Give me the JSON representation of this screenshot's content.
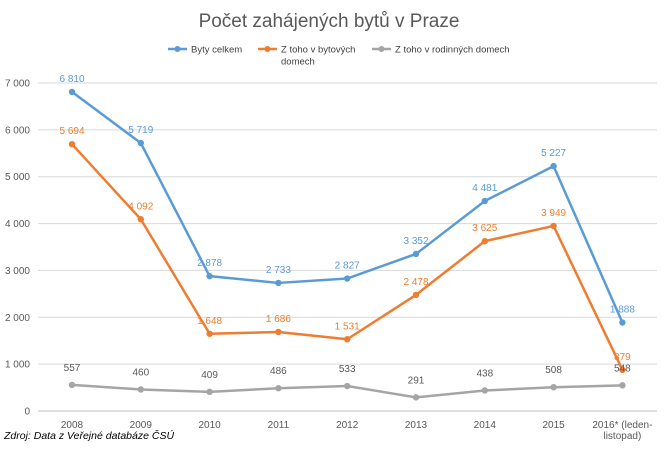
{
  "chart_data": {
    "type": "line",
    "title": "Počet zahájených bytů v Praze",
    "categories": [
      "2008",
      "2009",
      "2010",
      "2011",
      "2012",
      "2013",
      "2014",
      "2015",
      [
        "2016* (leden-",
        "listopad)"
      ]
    ],
    "ylim": [
      0,
      7000
    ],
    "yticks": [
      "0",
      "1 000",
      "2 000",
      "3 000",
      "4 000",
      "5 000",
      "6 000",
      "7 000"
    ],
    "ytick_values": [
      0,
      1000,
      2000,
      3000,
      4000,
      5000,
      6000,
      7000
    ],
    "grid": true,
    "legend_position": "top",
    "series": [
      {
        "name": "Byty celkem",
        "color": "#5b9bd5",
        "values": [
          6810,
          5719,
          2878,
          2733,
          2827,
          3352,
          4481,
          5227,
          1888
        ],
        "labels": [
          "6 810",
          "5 719",
          "2 878",
          "2 733",
          "2 827",
          "3 352",
          "4 481",
          "5 227",
          "1 888"
        ]
      },
      {
        "name": [
          "Z toho v bytových",
          "domech"
        ],
        "color": "#ed7d31",
        "values": [
          5694,
          4092,
          1648,
          1686,
          1531,
          2478,
          3625,
          3949,
          879
        ],
        "labels": [
          "5 694",
          "4 092",
          "1 648",
          "1 686",
          "1 531",
          "2 478",
          "3 625",
          "3 949",
          "879"
        ]
      },
      {
        "name": "Z toho v rodinných domech",
        "color": "#a5a5a5",
        "values": [
          557,
          460,
          409,
          486,
          533,
          291,
          438,
          508,
          548
        ],
        "labels": [
          "557",
          "460",
          "409",
          "486",
          "533",
          "291",
          "438",
          "508",
          "548"
        ]
      }
    ]
  },
  "source": "Zdroj: Data z Veřejné databáze ČSÚ"
}
